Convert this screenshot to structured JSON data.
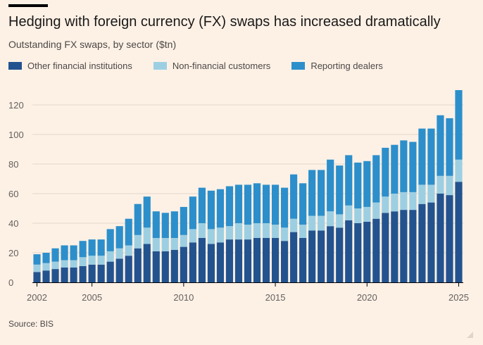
{
  "title": "Hedging with foreign currency (FX) swaps has increased dramatically",
  "subtitle": "Outstanding FX swaps, by sector ($tn)",
  "source": "Source: BIS",
  "colors": {
    "background": "#fdf1e6",
    "other_financial": "#23538f",
    "non_financial": "#9dcfe3",
    "reporting_dealers": "#2c8fcb",
    "grid": "#e3d7ca",
    "axis_text": "#66605c"
  },
  "chart_data": {
    "type": "bar",
    "stacked": true,
    "title": "Hedging with foreign currency (FX) swaps has increased dramatically",
    "subtitle": "Outstanding FX swaps, by sector ($tn)",
    "xlabel": "",
    "ylabel": "",
    "ylim": [
      0,
      130
    ],
    "yticks": [
      0,
      20,
      40,
      60,
      80,
      100,
      120
    ],
    "xticks": [
      "2002",
      "2005",
      "2010",
      "2015",
      "2020",
      "2025"
    ],
    "grid": true,
    "legend_position": "top-left",
    "categories": [
      "2002 H1",
      "2002 H2",
      "2003 H1",
      "2003 H2",
      "2004 H1",
      "2004 H2",
      "2005 H1",
      "2005 H2",
      "2006 H1",
      "2006 H2",
      "2007 H1",
      "2007 H2",
      "2008 H1",
      "2008 H2",
      "2009 H1",
      "2009 H2",
      "2010 H1",
      "2010 H2",
      "2011 H1",
      "2011 H2",
      "2012 H1",
      "2012 H2",
      "2013 H1",
      "2013 H2",
      "2014 H1",
      "2014 H2",
      "2015 H1",
      "2015 H2",
      "2016 H1",
      "2016 H2",
      "2017 H1",
      "2017 H2",
      "2018 H1",
      "2018 H2",
      "2019 H1",
      "2019 H2",
      "2020 H1",
      "2020 H2",
      "2021 H1",
      "2021 H2",
      "2022 H1",
      "2022 H2",
      "2023 H1",
      "2023 H2",
      "2024 H1",
      "2024 H2",
      "2025 H1"
    ],
    "series": [
      {
        "name": "Other financial institutions",
        "values": [
          7,
          8,
          9,
          10,
          10,
          11,
          12,
          12,
          14,
          16,
          18,
          23,
          26,
          21,
          21,
          22,
          24,
          27,
          30,
          26,
          27,
          29,
          29,
          29,
          30,
          30,
          30,
          28,
          34,
          30,
          35,
          35,
          38,
          37,
          42,
          40,
          41,
          43,
          47,
          48,
          49,
          49,
          53,
          54,
          60,
          59,
          68
        ]
      },
      {
        "name": "Non-financial customers",
        "values": [
          5,
          5,
          5,
          5,
          5,
          6,
          6,
          6,
          7,
          7,
          7,
          9,
          11,
          9,
          9,
          8,
          8,
          9,
          10,
          10,
          10,
          9,
          11,
          10,
          10,
          10,
          9,
          9,
          9,
          9,
          10,
          10,
          10,
          9,
          10,
          10,
          10,
          11,
          11,
          12,
          12,
          12,
          13,
          12,
          12,
          13,
          15
        ]
      },
      {
        "name": "Reporting dealers",
        "values": [
          7,
          7,
          9,
          10,
          10,
          11,
          11,
          11,
          15,
          15,
          18,
          21,
          21,
          18,
          17,
          18,
          19,
          22,
          24,
          26,
          26,
          27,
          26,
          27,
          27,
          26,
          27,
          27,
          30,
          28,
          31,
          31,
          35,
          33,
          34,
          31,
          31,
          32,
          33,
          33,
          35,
          34,
          38,
          38,
          41,
          39,
          47
        ]
      }
    ]
  },
  "legend": {
    "items": [
      {
        "label": "Other financial institutions",
        "color_key": "other_financial"
      },
      {
        "label": "Non-financial customers",
        "color_key": "non_financial"
      },
      {
        "label": "Reporting dealers",
        "color_key": "reporting_dealers"
      }
    ]
  }
}
